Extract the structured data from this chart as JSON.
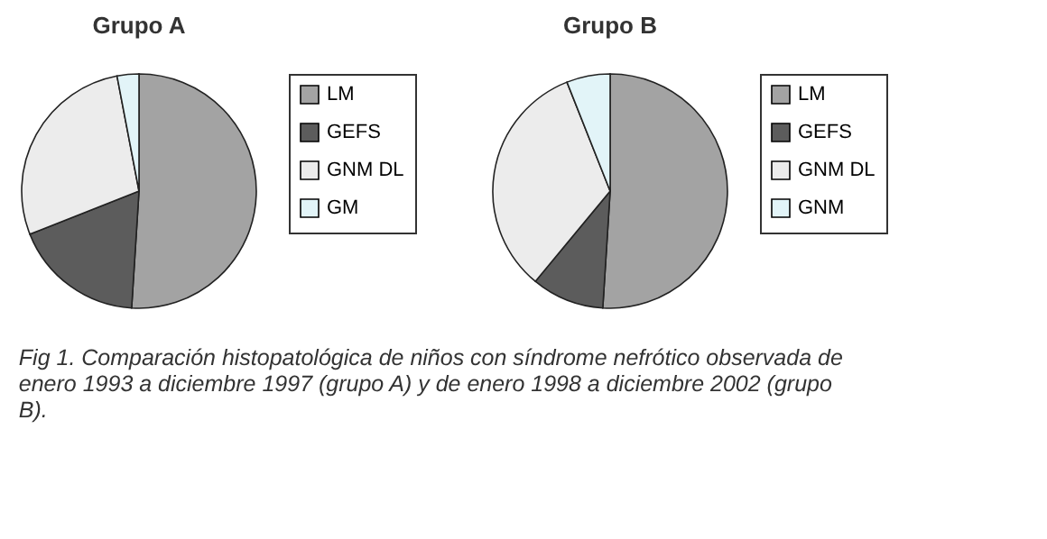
{
  "chart_data": [
    {
      "type": "pie",
      "title": "Grupo A",
      "categories": [
        "LM",
        "GEFS",
        "GNM DL",
        "GM"
      ],
      "values": [
        51,
        18,
        28,
        3
      ],
      "colors": [
        "#a3a3a3",
        "#5c5c5c",
        "#ececec",
        "#e2f4f8"
      ],
      "legend": "right"
    },
    {
      "type": "pie",
      "title": "Grupo B",
      "categories": [
        "LM",
        "GEFS",
        "GNM DL",
        "GNM"
      ],
      "values": [
        51,
        10,
        33,
        6
      ],
      "colors": [
        "#a3a3a3",
        "#5c5c5c",
        "#ececec",
        "#e2f4f8"
      ],
      "legend": "right",
      "annotations": [
        "Fig 1. Comparación histopatológica de niños con síndrome nefrótico observada de enero 1993 a diciembre 1997 (grupo A) y de enero 1998 a diciembre 2002 (grupo B)."
      ]
    }
  ]
}
